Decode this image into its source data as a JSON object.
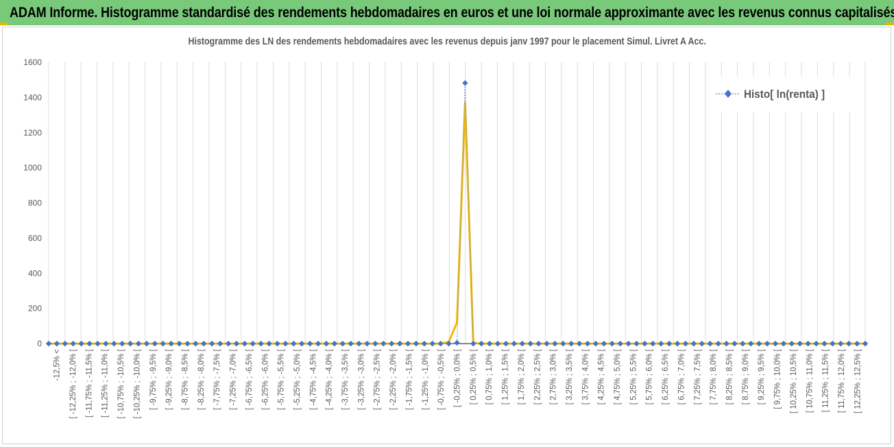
{
  "banner": {
    "title": "ADAM Informe. Histogramme standardisé des rendements hebdomadaires en euros et une loi normale approximante avec les revenus connus capitalisés"
  },
  "colors": {
    "banner_bg": "#79c97a",
    "histo_series": "#4472c4",
    "normal_curve": "#f5b800",
    "axis_text": "#595959"
  },
  "chart_data": {
    "type": "line",
    "title": "Histogramme des LN des rendements hebdomadaires avec les revenus depuis janv 1997 pour le placement Simul. Livret A Acc.",
    "ylim": [
      0,
      1600
    ],
    "yticks": [
      0,
      200,
      400,
      600,
      800,
      1000,
      1200,
      1400,
      1600
    ],
    "grid": "vertical",
    "legend_position": "top-right",
    "categories": [
      "-12,5% <",
      "[ -12,25% ; -12,0% [",
      "[ -11,75% ; -11,5% [",
      "[ -11,25% ; -11,0% [",
      "[ -10,75% ; -10,5% [",
      "[ -10,25% ; -10,0% [",
      "[ -9,75% ; -9,5% [",
      "[ -9,25% ; -9,0% [",
      "[ -8,75% ; -8,5% [",
      "[ -8,25% ; -8,0% [",
      "[ -7,75% ; -7,5% [",
      "[ -7,25% ; -7,0% [",
      "[ -6,75% ; -6,5% [",
      "[ -6,25% ; -6,0% [",
      "[ -5,75% ; -5,5% [",
      "[ -5,25% ; -5,0% [",
      "[ -4,75% ; -4,5% [",
      "[ -4,25% ; -4,0% [",
      "[ -3,75% ; -3,5% [",
      "[ -3,25% ; -3,0% [",
      "[ -2,75% ; -2,5% [",
      "[ -2,25% ; -2,0% [",
      "[ -1,75% ; -1,5% [",
      "[ -1,25% ; -1,0% [",
      "[ -0,75% ; -0,5% [",
      "[ -0,25% ; 0,0% [",
      "[ 0,25% ; 0,5% [",
      "[ 0,75% ; 1,0% [",
      "[ 1,25% ; 1,5% [",
      "[ 1,75% ; 2,0% [",
      "[ 2,25% ; 2,5% [",
      "[ 2,75% ; 3,0% [",
      "[ 3,25% ; 3,5% [",
      "[ 3,75% ; 4,0% [",
      "[ 4,25% ; 4,5% [",
      "[ 4,75% ; 5,0% [",
      "[ 5,25% ; 5,5% [",
      "[ 5,75% ; 6,0% [",
      "[ 6,25% ; 6,5% [",
      "[ 6,75% ; 7,0% [",
      "[ 7,25% ; 7,5% [",
      "[ 7,75% ; 8,0% [",
      "[ 8,25% ; 8,5% [",
      "[ 8,75% ; 9,0% [",
      "[ 9,25% ; 9,5% [",
      "[ 9,75% ; 10,0% [",
      "[ 10,25% ; 10,5% [",
      "[ 10,75% ; 11,0% [",
      "[ 11,25% ; 11,5% [",
      "[ 11,75% ; 12,0% [",
      "[ 12,25% ; 12,5% ["
    ],
    "x_points": 101,
    "series": [
      {
        "name": "Histo[ ln(renta) ]",
        "style": "dotted line with diamond markers",
        "sparse_values": {
          "50": 5,
          "51": 1482
        }
      },
      {
        "style": "solid line",
        "sparse_values": {
          "49": 10,
          "50": 120,
          "51": 1370,
          "52": 5
        }
      }
    ]
  }
}
